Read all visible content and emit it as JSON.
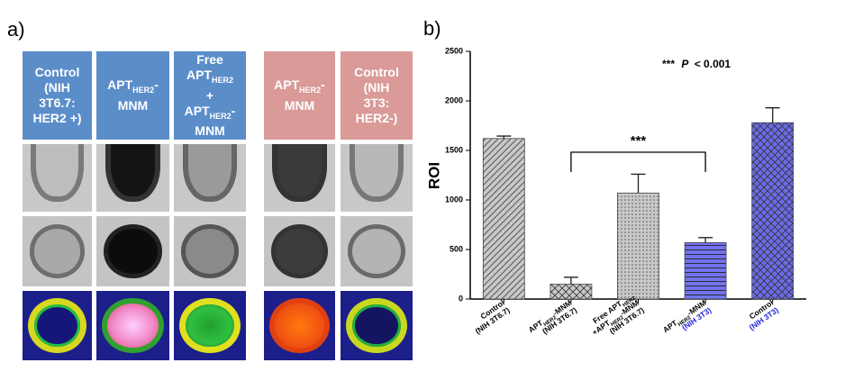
{
  "panel_a": {
    "label": "a)",
    "columns": [
      {
        "texts": [
          "Control",
          "(NIH",
          "3T6.7:",
          "HER2 +)"
        ]
      },
      {
        "texts": [
          "APT",
          "HER2",
          "-",
          "MNM"
        ]
      },
      {
        "texts": [
          "Free",
          "APT",
          "HER2",
          "+",
          "APT",
          "HER2",
          "-",
          "MNM"
        ]
      },
      {
        "texts": [
          "APT",
          "HER2",
          "-",
          "MNM"
        ]
      },
      {
        "texts": [
          "Control",
          "(NIH",
          "3T3:",
          "HER2-)"
        ]
      }
    ]
  },
  "chart_data": {
    "type": "bar",
    "panel_label": "b)",
    "y_label": "ROI",
    "categories": [
      [
        "Control",
        "(NIH 3T6.7)"
      ],
      [
        "APT",
        "HER2",
        "-MNM",
        "(NIH 3T6.7)"
      ],
      [
        "Free APT",
        "HER2",
        "+APT",
        "HER2",
        "-MNM",
        "(NIH 3T6.7)"
      ],
      [
        "APT",
        "HER2",
        "-MNM",
        "(NIH 3T3)"
      ],
      [
        "Control",
        "(NIH 3T3)"
      ]
    ],
    "values": [
      1620,
      150,
      1070,
      570,
      1780
    ],
    "errors": [
      25,
      70,
      190,
      50,
      150
    ],
    "colors": [
      "#c8c8c8",
      "#c8c8c8",
      "#c8c8c8",
      "#7373f0",
      "#6b6be8"
    ],
    "patterns": [
      "diagonal",
      "cross",
      "dots",
      "horizontal",
      "cross"
    ],
    "ylim": [
      0,
      2500
    ],
    "yticks": [
      0,
      500,
      1000,
      1500,
      2000,
      2500
    ],
    "significance": {
      "label": "***",
      "from": 1,
      "to": 3
    },
    "note": [
      "***",
      "P",
      "< 0.001"
    ]
  }
}
